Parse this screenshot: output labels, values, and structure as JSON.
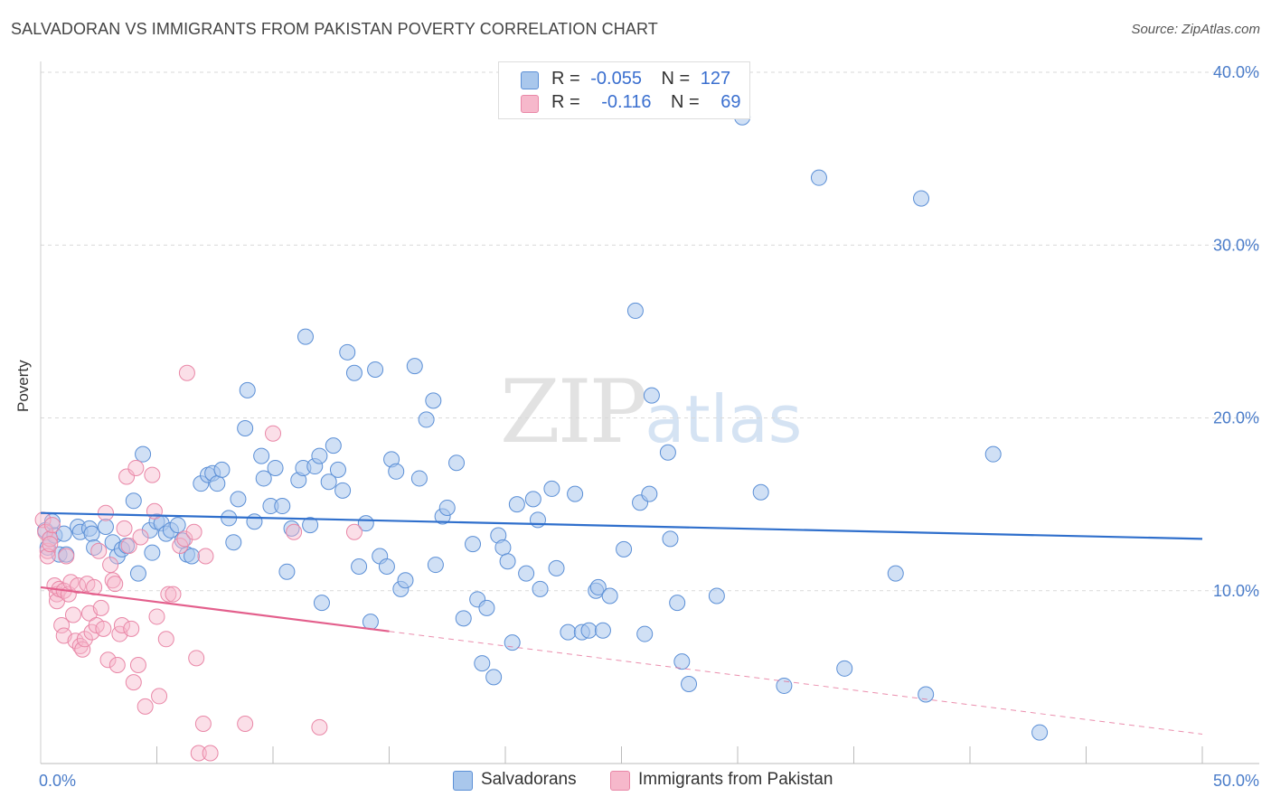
{
  "title": "SALVADORAN VS IMMIGRANTS FROM PAKISTAN POVERTY CORRELATION CHART",
  "source": "Source: ZipAtlas.com",
  "watermark": {
    "zip": "ZIP",
    "atlas": "atlas"
  },
  "legend": {
    "rows": [
      {
        "r_label": "R =",
        "r_value": "-0.055",
        "n_label": "N =",
        "n_value": "127"
      },
      {
        "r_label": "R =",
        "r_value": "-0.116",
        "n_label": "N =",
        "n_value": "69"
      }
    ]
  },
  "colors": {
    "salvadorans_fill": "#a9c7ec",
    "salvadorans_stroke": "#5b8fd6",
    "salvadorans_line": "#2f6fcc",
    "pakistan_fill": "#f6b8cb",
    "pakistan_stroke": "#e987a7",
    "pakistan_line": "#e35f8c",
    "grid": "#d9d9d9",
    "tick_text": "#4a7cc9"
  },
  "chart_data": {
    "type": "scatter",
    "title": "SALVADORAN VS IMMIGRANTS FROM PAKISTAN POVERTY CORRELATION CHART",
    "xlabel": "",
    "ylabel": "Poverty",
    "xlim": [
      0,
      50
    ],
    "ylim": [
      0,
      40
    ],
    "x_tick_labels": [
      "0.0%",
      "50.0%"
    ],
    "y_ticks": [
      10,
      20,
      30,
      40
    ],
    "y_tick_labels": [
      "10.0%",
      "20.0%",
      "30.0%",
      "40.0%"
    ],
    "grid": true,
    "legend_placement": "top-center",
    "series": [
      {
        "name": "Salvadorans",
        "R": -0.055,
        "N": 127,
        "trend": {
          "x0": 0,
          "y0": 14.5,
          "x1": 50,
          "y1": 13.0,
          "solid_until": 50
        },
        "points": [
          [
            0.2,
            13.5
          ],
          [
            0.3,
            12.5
          ],
          [
            0.4,
            13.0
          ],
          [
            0.5,
            14.0
          ],
          [
            0.6,
            13.2
          ],
          [
            0.8,
            12.1
          ],
          [
            1.0,
            13.3
          ],
          [
            1.1,
            12.1
          ],
          [
            1.6,
            13.7
          ],
          [
            1.7,
            13.4
          ],
          [
            2.1,
            13.6
          ],
          [
            2.2,
            13.3
          ],
          [
            2.3,
            12.5
          ],
          [
            2.8,
            13.7
          ],
          [
            3.1,
            12.8
          ],
          [
            3.3,
            12.0
          ],
          [
            3.5,
            12.4
          ],
          [
            3.7,
            12.6
          ],
          [
            4.0,
            15.2
          ],
          [
            4.2,
            11.0
          ],
          [
            4.4,
            17.9
          ],
          [
            4.8,
            12.2
          ],
          [
            4.7,
            13.5
          ],
          [
            5.0,
            14.0
          ],
          [
            5.2,
            13.9
          ],
          [
            5.4,
            13.3
          ],
          [
            5.6,
            13.5
          ],
          [
            5.9,
            13.8
          ],
          [
            6.1,
            12.9
          ],
          [
            6.3,
            12.1
          ],
          [
            6.5,
            12.0
          ],
          [
            6.9,
            16.2
          ],
          [
            7.2,
            16.7
          ],
          [
            7.4,
            16.8
          ],
          [
            7.6,
            16.2
          ],
          [
            7.8,
            17.0
          ],
          [
            8.1,
            14.2
          ],
          [
            8.3,
            12.8
          ],
          [
            8.5,
            15.3
          ],
          [
            8.8,
            19.4
          ],
          [
            8.9,
            21.6
          ],
          [
            9.2,
            14.0
          ],
          [
            9.5,
            17.8
          ],
          [
            9.6,
            16.5
          ],
          [
            9.9,
            14.9
          ],
          [
            10.1,
            17.1
          ],
          [
            10.4,
            14.9
          ],
          [
            10.6,
            11.1
          ],
          [
            10.8,
            13.6
          ],
          [
            11.1,
            16.4
          ],
          [
            11.3,
            17.1
          ],
          [
            11.4,
            24.7
          ],
          [
            11.6,
            13.8
          ],
          [
            11.8,
            17.2
          ],
          [
            12.0,
            17.8
          ],
          [
            12.1,
            9.3
          ],
          [
            12.4,
            16.3
          ],
          [
            12.6,
            18.4
          ],
          [
            12.8,
            17.0
          ],
          [
            13.0,
            15.8
          ],
          [
            13.2,
            23.8
          ],
          [
            13.5,
            22.6
          ],
          [
            13.7,
            11.4
          ],
          [
            14.0,
            13.9
          ],
          [
            14.2,
            8.2
          ],
          [
            14.4,
            22.8
          ],
          [
            14.6,
            12.0
          ],
          [
            14.9,
            11.4
          ],
          [
            15.1,
            17.6
          ],
          [
            15.3,
            16.9
          ],
          [
            15.5,
            10.1
          ],
          [
            15.7,
            10.6
          ],
          [
            16.1,
            23.0
          ],
          [
            16.3,
            16.5
          ],
          [
            16.6,
            19.9
          ],
          [
            16.9,
            21.0
          ],
          [
            17.0,
            11.5
          ],
          [
            17.3,
            14.3
          ],
          [
            17.5,
            14.8
          ],
          [
            17.9,
            17.4
          ],
          [
            18.2,
            8.4
          ],
          [
            18.6,
            12.7
          ],
          [
            18.8,
            9.5
          ],
          [
            19.0,
            5.8
          ],
          [
            19.2,
            9.0
          ],
          [
            19.5,
            5.0
          ],
          [
            19.7,
            13.2
          ],
          [
            19.9,
            12.5
          ],
          [
            20.1,
            11.7
          ],
          [
            20.3,
            7.0
          ],
          [
            20.5,
            15.0
          ],
          [
            20.9,
            11.0
          ],
          [
            21.2,
            15.3
          ],
          [
            21.4,
            14.1
          ],
          [
            21.5,
            10.1
          ],
          [
            22.0,
            15.9
          ],
          [
            22.2,
            11.3
          ],
          [
            22.7,
            7.6
          ],
          [
            23.0,
            15.6
          ],
          [
            23.3,
            7.6
          ],
          [
            23.6,
            7.7
          ],
          [
            23.9,
            10.0
          ],
          [
            24.0,
            10.2
          ],
          [
            24.2,
            7.7
          ],
          [
            24.5,
            9.7
          ],
          [
            25.1,
            12.4
          ],
          [
            25.6,
            26.2
          ],
          [
            25.8,
            15.1
          ],
          [
            26.0,
            7.5
          ],
          [
            26.2,
            15.6
          ],
          [
            26.3,
            21.3
          ],
          [
            27.0,
            18.0
          ],
          [
            27.1,
            13.0
          ],
          [
            27.4,
            9.3
          ],
          [
            27.6,
            5.9
          ],
          [
            27.9,
            4.6
          ],
          [
            29.1,
            9.7
          ],
          [
            30.2,
            37.4
          ],
          [
            31.0,
            15.7
          ],
          [
            32.0,
            4.5
          ],
          [
            33.5,
            33.9
          ],
          [
            34.6,
            5.5
          ],
          [
            36.8,
            11.0
          ],
          [
            37.9,
            32.7
          ],
          [
            38.1,
            4.0
          ],
          [
            41.0,
            17.9
          ],
          [
            43.0,
            1.8
          ]
        ]
      },
      {
        "name": "Immigrants from Pakistan",
        "R": -0.116,
        "N": 69,
        "trend": {
          "x0": 0,
          "y0": 10.2,
          "x1": 50,
          "y1": 1.7,
          "solid_until": 15
        },
        "points": [
          [
            0.1,
            14.1
          ],
          [
            0.2,
            13.4
          ],
          [
            0.3,
            12.3
          ],
          [
            0.3,
            12.0
          ],
          [
            0.4,
            13.0
          ],
          [
            0.4,
            12.7
          ],
          [
            0.5,
            13.8
          ],
          [
            0.6,
            10.3
          ],
          [
            0.7,
            9.8
          ],
          [
            0.7,
            9.4
          ],
          [
            0.8,
            10.1
          ],
          [
            0.9,
            8.0
          ],
          [
            1.0,
            7.4
          ],
          [
            1.0,
            10.0
          ],
          [
            1.1,
            12.0
          ],
          [
            1.2,
            9.8
          ],
          [
            1.3,
            10.5
          ],
          [
            1.4,
            8.6
          ],
          [
            1.5,
            7.1
          ],
          [
            1.6,
            10.3
          ],
          [
            1.7,
            6.8
          ],
          [
            1.8,
            6.6
          ],
          [
            1.9,
            7.2
          ],
          [
            2.0,
            10.4
          ],
          [
            2.1,
            8.7
          ],
          [
            2.2,
            7.6
          ],
          [
            2.3,
            10.2
          ],
          [
            2.4,
            8.0
          ],
          [
            2.5,
            12.3
          ],
          [
            2.6,
            9.0
          ],
          [
            2.7,
            7.8
          ],
          [
            2.8,
            14.5
          ],
          [
            2.9,
            6.0
          ],
          [
            3.0,
            11.5
          ],
          [
            3.1,
            10.6
          ],
          [
            3.2,
            10.4
          ],
          [
            3.3,
            5.7
          ],
          [
            3.4,
            7.5
          ],
          [
            3.5,
            8.0
          ],
          [
            3.6,
            13.6
          ],
          [
            3.7,
            16.6
          ],
          [
            3.8,
            12.6
          ],
          [
            3.9,
            7.8
          ],
          [
            4.0,
            4.7
          ],
          [
            4.1,
            17.1
          ],
          [
            4.2,
            5.7
          ],
          [
            4.3,
            13.1
          ],
          [
            4.5,
            3.3
          ],
          [
            4.8,
            16.7
          ],
          [
            4.9,
            14.6
          ],
          [
            5.0,
            8.5
          ],
          [
            5.1,
            3.9
          ],
          [
            5.4,
            7.2
          ],
          [
            5.5,
            9.8
          ],
          [
            5.7,
            9.8
          ],
          [
            6.0,
            12.6
          ],
          [
            6.2,
            13.0
          ],
          [
            6.3,
            22.6
          ],
          [
            6.6,
            13.4
          ],
          [
            6.7,
            6.1
          ],
          [
            6.8,
            0.6
          ],
          [
            7.0,
            2.3
          ],
          [
            7.1,
            12.0
          ],
          [
            7.3,
            0.6
          ],
          [
            8.8,
            2.3
          ],
          [
            10.0,
            19.1
          ],
          [
            10.9,
            13.4
          ],
          [
            12.0,
            2.1
          ],
          [
            13.5,
            13.4
          ]
        ]
      }
    ]
  }
}
